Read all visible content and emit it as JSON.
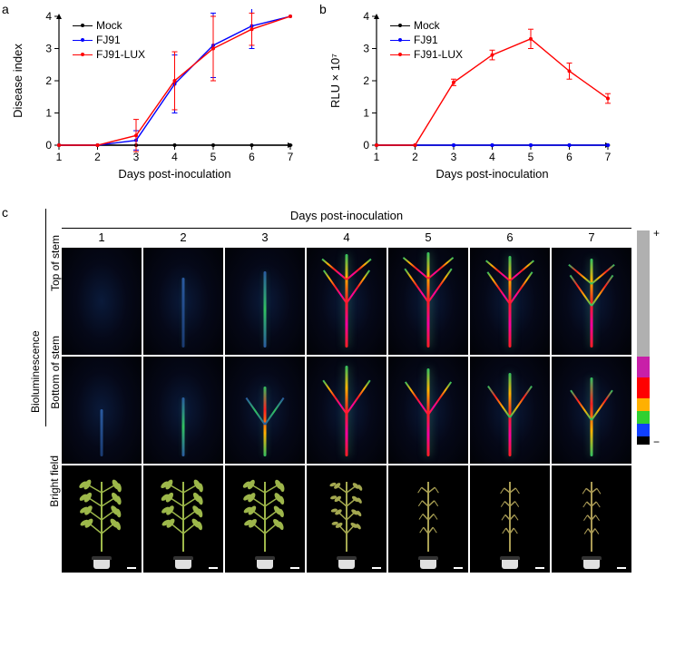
{
  "panel_a": {
    "label": "a",
    "type": "line",
    "xlabel": "Days post-inoculation",
    "ylabel": "Disease index",
    "xlim": [
      1,
      7
    ],
    "ylim": [
      0,
      4
    ],
    "xticks": [
      1,
      2,
      3,
      4,
      5,
      6,
      7
    ],
    "yticks": [
      0,
      1,
      2,
      3,
      4
    ],
    "axis_color": "#000000",
    "label_fontsize": 13,
    "tick_fontsize": 12,
    "legend": [
      {
        "label": "Mock",
        "color": "#000000"
      },
      {
        "label": "FJ91",
        "color": "#0000ff"
      },
      {
        "label": "FJ91-LUX",
        "color": "#ff0000"
      }
    ],
    "series": {
      "Mock": {
        "color": "#000000",
        "y": [
          0,
          0,
          0,
          0,
          0,
          0,
          0
        ],
        "err": [
          0,
          0,
          0,
          0,
          0,
          0,
          0
        ]
      },
      "FJ91": {
        "color": "#0000ff",
        "y": [
          0,
          0,
          0.15,
          1.9,
          3.1,
          3.7,
          4.0
        ],
        "err": [
          0,
          0,
          0.3,
          0.9,
          1.0,
          0.7,
          0
        ]
      },
      "FJ91-LUX": {
        "color": "#ff0000",
        "y": [
          0,
          0,
          0.3,
          2.0,
          3.0,
          3.6,
          4.0
        ],
        "err": [
          0,
          0,
          0.5,
          0.9,
          1.0,
          0.5,
          0
        ]
      }
    }
  },
  "panel_b": {
    "label": "b",
    "type": "line",
    "xlabel": "Days post-inoculation",
    "ylabel": "RLU × 10⁷",
    "xlim": [
      1,
      7
    ],
    "ylim": [
      0,
      4
    ],
    "xticks": [
      1,
      2,
      3,
      4,
      5,
      6,
      7
    ],
    "yticks": [
      0,
      1,
      2,
      3,
      4
    ],
    "axis_color": "#000000",
    "label_fontsize": 13,
    "tick_fontsize": 12,
    "legend": [
      {
        "label": "Mock",
        "color": "#000000"
      },
      {
        "label": "FJ91",
        "color": "#0000ff"
      },
      {
        "label": "FJ91-LUX",
        "color": "#ff0000"
      }
    ],
    "series": {
      "Mock": {
        "color": "#000000",
        "y": [
          0,
          0,
          0,
          0,
          0,
          0,
          0
        ],
        "err": [
          0,
          0,
          0,
          0,
          0,
          0,
          0
        ]
      },
      "FJ91": {
        "color": "#0000ff",
        "y": [
          0,
          0,
          0,
          0,
          0,
          0,
          0
        ],
        "err": [
          0,
          0,
          0,
          0,
          0,
          0,
          0
        ]
      },
      "FJ91-LUX": {
        "color": "#ff0000",
        "y": [
          0,
          0,
          1.95,
          2.8,
          3.3,
          2.3,
          1.45
        ],
        "err": [
          0,
          0,
          0.1,
          0.15,
          0.3,
          0.25,
          0.15
        ]
      }
    }
  },
  "panel_c": {
    "label": "c",
    "title": "Days post-inoculation",
    "columns": [
      "1",
      "2",
      "3",
      "4",
      "5",
      "6",
      "7"
    ],
    "row_group_label": "Bioluminescence",
    "rows": [
      {
        "label": "Top of stem",
        "kind": "biolum-top"
      },
      {
        "label": "Bottom of stem",
        "kind": "biolum-bottom"
      },
      {
        "label": "Bright field",
        "kind": "brightfield"
      }
    ],
    "biolum_intensity_top": [
      0.0,
      0.2,
      0.4,
      0.95,
      1.0,
      0.9,
      0.8
    ],
    "biolum_intensity_bottom": [
      0.05,
      0.3,
      0.55,
      1.0,
      0.95,
      0.85,
      0.75
    ],
    "plant_wilt": [
      0.0,
      0.0,
      0.05,
      0.55,
      0.85,
      0.95,
      1.0
    ],
    "colorbar": {
      "segments": [
        {
          "color": "#b0b0b0",
          "flex": 6
        },
        {
          "color": "#c81fa8",
          "flex": 1
        },
        {
          "color": "#ff0000",
          "flex": 1
        },
        {
          "color": "#ffb000",
          "flex": 0.6
        },
        {
          "color": "#30d030",
          "flex": 0.6
        },
        {
          "color": "#1040ff",
          "flex": 0.6
        },
        {
          "color": "#000000",
          "flex": 0.4
        }
      ],
      "top_label": "+",
      "bottom_label": "−"
    },
    "cell_bg_dark": "#030614",
    "plant_green": "#9db84a",
    "plant_wilted": "#aa9a55",
    "pot_color": "#e0e0e0"
  }
}
